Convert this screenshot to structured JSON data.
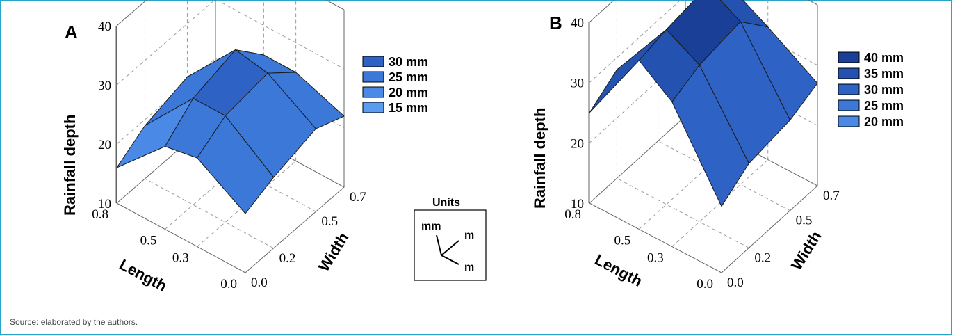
{
  "source_note": "Source: elaborated by the authors.",
  "units_box": {
    "title": "Units",
    "z_unit": "mm",
    "y_unit": "m",
    "x_unit": "m"
  },
  "colors": {
    "c15": "#5b9cf0",
    "c20": "#4a8ae6",
    "c25": "#3b78d8",
    "c30": "#2e62c4",
    "c35": "#2452b0",
    "c40": "#1a3f96",
    "edge": "#1b1b1b"
  },
  "chart_data": [
    {
      "panel": "A",
      "type": "surface3d",
      "zlabel": "Rainfall depth",
      "xlabel": "Length",
      "ylabel": "Width",
      "z_ticks": [
        "40",
        "30",
        "20",
        "10"
      ],
      "x_ticks": [
        "0.8",
        "0.5",
        "0.3",
        "0.0"
      ],
      "y_ticks": [
        "0.0",
        "0.2",
        "0.5",
        "0.7"
      ],
      "legend": [
        {
          "label": "30 mm",
          "color_key": "c30"
        },
        {
          "label": "25 mm",
          "color_key": "c25"
        },
        {
          "label": "20 mm",
          "color_key": "c20"
        },
        {
          "label": "15 mm",
          "color_key": "c15"
        }
      ],
      "length": [
        0.0,
        0.3,
        0.5,
        0.8
      ],
      "width": [
        0.0,
        0.2,
        0.5,
        0.7
      ],
      "rainfall_mm": [
        [
          20,
          22,
          24,
          22
        ],
        [
          25,
          28,
          29,
          25
        ],
        [
          24,
          28,
          30,
          25
        ],
        [
          16,
          19,
          21,
          15
        ]
      ]
    },
    {
      "panel": "B",
      "type": "surface3d",
      "zlabel": "Rainfall depth",
      "xlabel": "Length",
      "ylabel": "Width",
      "z_ticks": [
        "40",
        "30",
        "20",
        "10"
      ],
      "x_ticks": [
        "0.8",
        "0.5",
        "0.3",
        "0.0"
      ],
      "y_ticks": [
        "0.0",
        "0.2",
        "0.5",
        "0.7"
      ],
      "legend": [
        {
          "label": "40 mm",
          "color_key": "c40"
        },
        {
          "label": "35 mm",
          "color_key": "c35"
        },
        {
          "label": "30 mm",
          "color_key": "c30"
        },
        {
          "label": "25 mm",
          "color_key": "c25"
        },
        {
          "label": "20 mm",
          "color_key": "c20"
        }
      ],
      "length": [
        0.0,
        0.3,
        0.5,
        0.8
      ],
      "width": [
        0.0,
        0.2,
        0.5,
        0.7
      ],
      "rainfall_mm": [
        [
          21,
          24,
          25,
          27
        ],
        [
          34,
          36,
          37,
          32
        ],
        [
          38,
          39,
          40,
          35
        ],
        [
          25,
          28,
          27,
          25
        ]
      ]
    }
  ]
}
